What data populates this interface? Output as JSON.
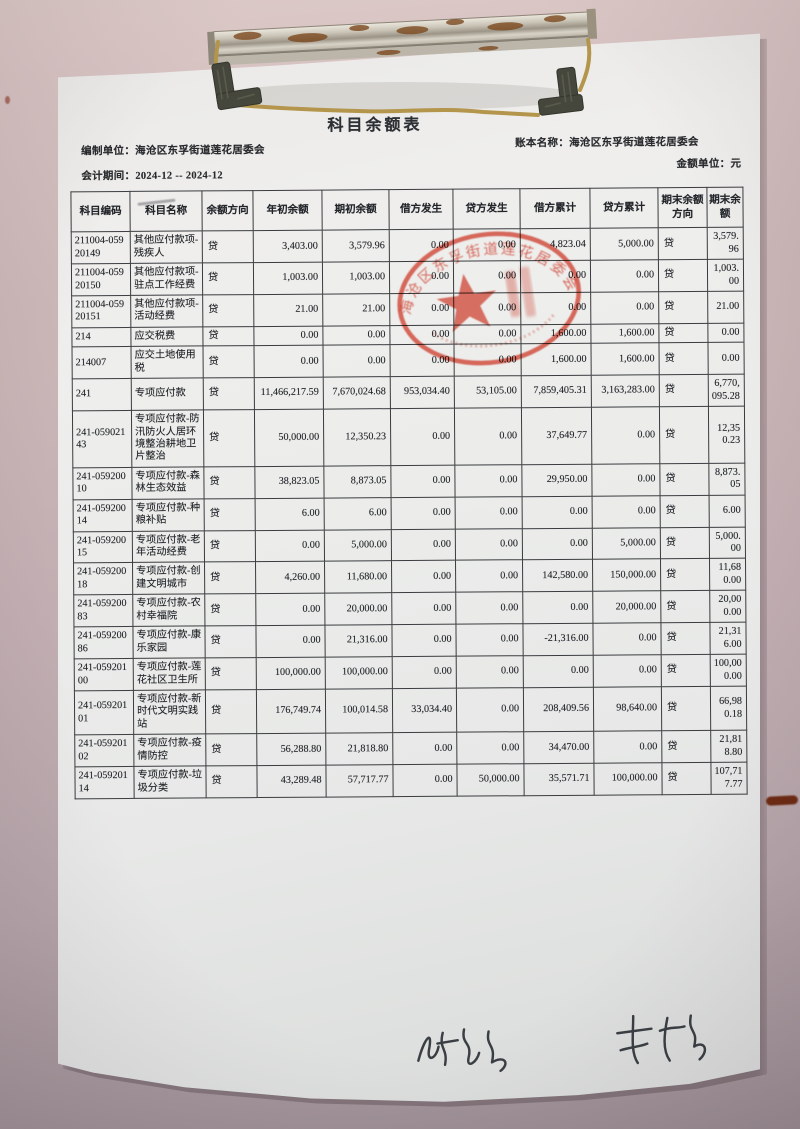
{
  "document": {
    "title": "科目余额表",
    "meta": {
      "prepared_by": "编制单位：海沧区东孚街道莲花居委会",
      "period": "会计期间：2024-12 -- 2024-12",
      "book_name": "账本名称：海沧区东孚街道莲花居委会",
      "unit": "金额单位：元"
    },
    "table": {
      "columns": [
        "科目编码",
        "科目名称",
        "余额方向",
        "年初余额",
        "期初余额",
        "借方发生",
        "贷方发生",
        "借方累计",
        "贷方累计",
        "期末余额方向",
        "期末余额"
      ],
      "rows": [
        [
          "211004-05920149",
          "其他应付款项-残疾人",
          "贷",
          "3,403.00",
          "3,579.96",
          "0.00",
          "0.00",
          "4,823.04",
          "5,000.00",
          "贷",
          "3,579.96"
        ],
        [
          "211004-05920150",
          "其他应付款项-驻点工作经费",
          "贷",
          "1,003.00",
          "1,003.00",
          "0.00",
          "0.00",
          "0.00",
          "0.00",
          "贷",
          "1,003.00"
        ],
        [
          "211004-05920151",
          "其他应付款项-活动经费",
          "贷",
          "21.00",
          "21.00",
          "0.00",
          "0.00",
          "0.00",
          "0.00",
          "贷",
          "21.00"
        ],
        [
          "214",
          "应交税费",
          "贷",
          "0.00",
          "0.00",
          "0.00",
          "0.00",
          "1,600.00",
          "1,600.00",
          "贷",
          "0.00"
        ],
        [
          "214007",
          "应交土地使用税",
          "贷",
          "0.00",
          "0.00",
          "0.00",
          "0.00",
          "1,600.00",
          "1,600.00",
          "贷",
          "0.00"
        ],
        [
          "241",
          "专项应付款",
          "贷",
          "11,466,217.59",
          "7,670,024.68",
          "953,034.40",
          "53,105.00",
          "7,859,405.31",
          "3,163,283.00",
          "贷",
          "6,770,095.28"
        ],
        [
          "241-05902143",
          "专项应付款-防汛防火人居环境整治耕地卫片整治",
          "贷",
          "50,000.00",
          "12,350.23",
          "0.00",
          "0.00",
          "37,649.77",
          "0.00",
          "贷",
          "12,350.23"
        ],
        [
          "241-05920010",
          "专项应付款-森林生态效益",
          "贷",
          "38,823.05",
          "8,873.05",
          "0.00",
          "0.00",
          "29,950.00",
          "0.00",
          "贷",
          "8,873.05"
        ],
        [
          "241-05920014",
          "专项应付款-种粮补贴",
          "贷",
          "6.00",
          "6.00",
          "0.00",
          "0.00",
          "0.00",
          "0.00",
          "贷",
          "6.00"
        ],
        [
          "241-05920015",
          "专项应付款-老年活动经费",
          "贷",
          "0.00",
          "5,000.00",
          "0.00",
          "0.00",
          "0.00",
          "5,000.00",
          "贷",
          "5,000.00"
        ],
        [
          "241-05920018",
          "专项应付款-创建文明城市",
          "贷",
          "4,260.00",
          "11,680.00",
          "0.00",
          "0.00",
          "142,580.00",
          "150,000.00",
          "贷",
          "11,680.00"
        ],
        [
          "241-05920083",
          "专项应付款-农村幸福院",
          "贷",
          "0.00",
          "20,000.00",
          "0.00",
          "0.00",
          "0.00",
          "20,000.00",
          "贷",
          "20,000.00"
        ],
        [
          "241-05920086",
          "专项应付款-康乐家园",
          "贷",
          "0.00",
          "21,316.00",
          "0.00",
          "0.00",
          "-21,316.00",
          "0.00",
          "贷",
          "21,316.00"
        ],
        [
          "241-05920100",
          "专项应付款-莲花社区卫生所",
          "贷",
          "100,000.00",
          "100,000.00",
          "0.00",
          "0.00",
          "0.00",
          "0.00",
          "贷",
          "100,000.00"
        ],
        [
          "241-05920101",
          "专项应付款-新时代文明实践站",
          "贷",
          "176,749.74",
          "100,014.58",
          "33,034.40",
          "0.00",
          "208,409.56",
          "98,640.00",
          "贷",
          "66,980.18"
        ],
        [
          "241-05920102",
          "专项应付款-疫情防控",
          "贷",
          "56,288.80",
          "21,818.80",
          "0.00",
          "0.00",
          "34,470.00",
          "0.00",
          "贷",
          "21,818.80"
        ],
        [
          "241-05920114",
          "专项应付款-垃圾分类",
          "贷",
          "43,289.48",
          "57,717.77",
          "0.00",
          "50,000.00",
          "35,571.71",
          "100,000.00",
          "贷",
          "107,717.77"
        ]
      ]
    },
    "stamp": {
      "arc_text": "海沧区东孚街道莲花居委会",
      "color": "#cd3a2a"
    }
  }
}
